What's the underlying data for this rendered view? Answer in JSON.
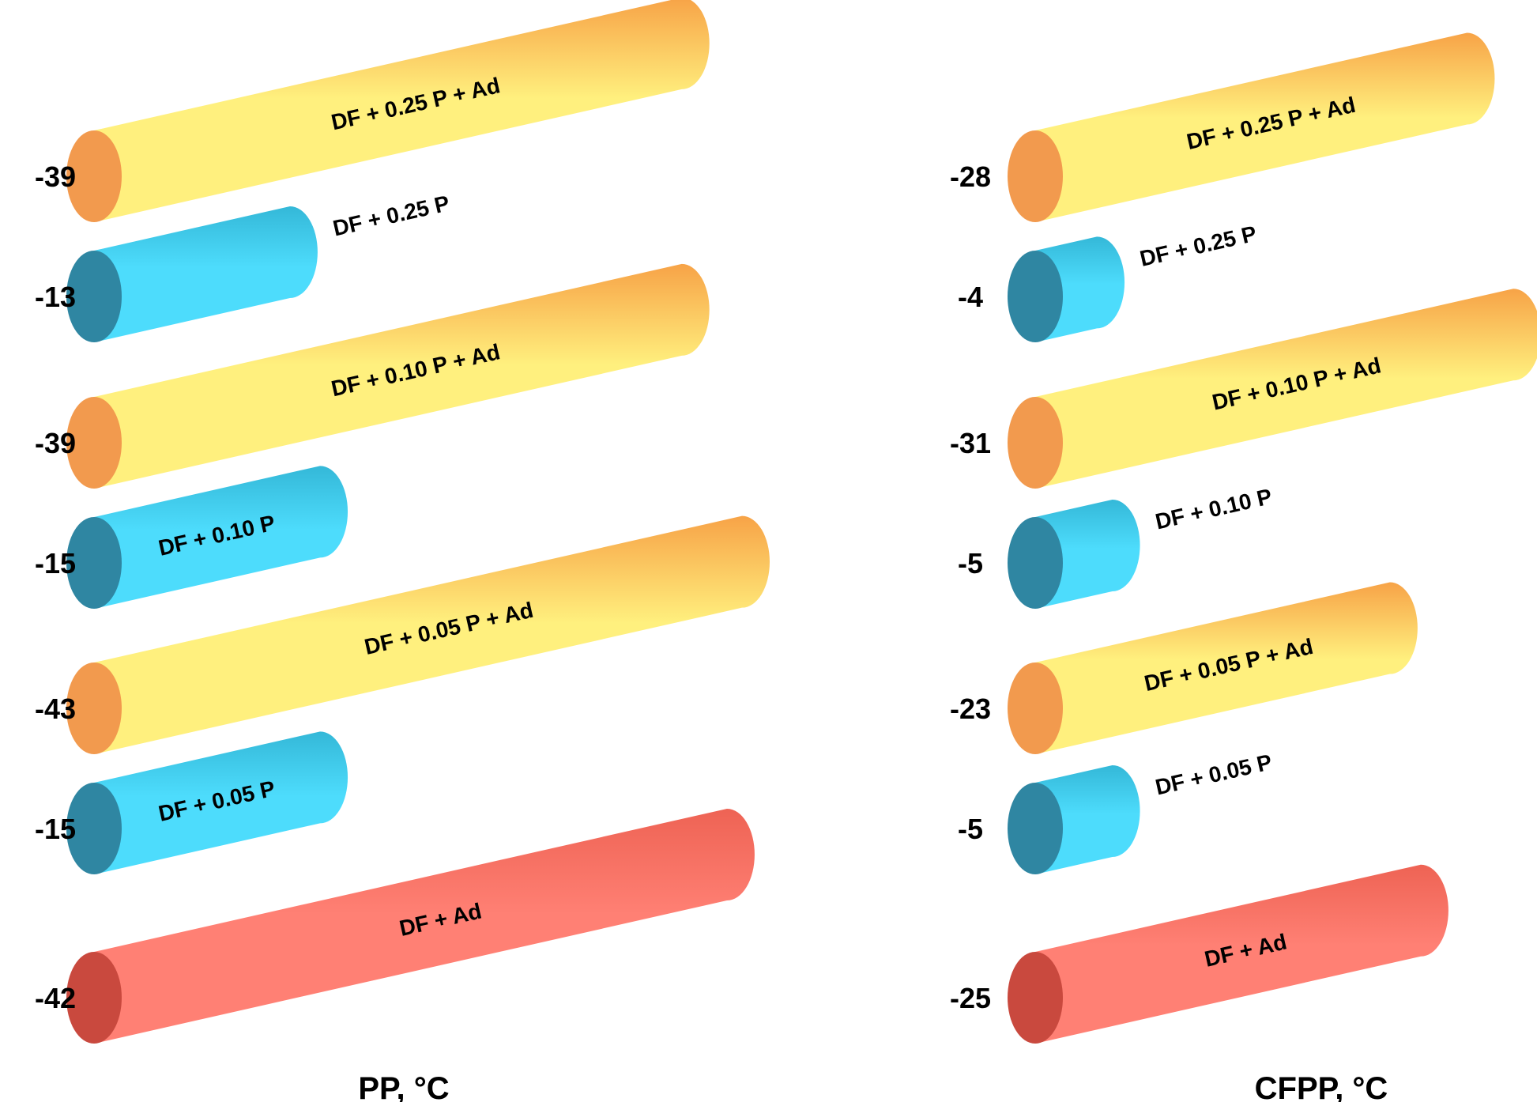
{
  "chart_data": [
    {
      "type": "bar",
      "orientation": "horizontal",
      "value_sign": "negative",
      "xlabel": "PP, °C",
      "categories": [
        "DF + 0.25 P + Ad",
        "DF + 0.25 P",
        "DF + 0.10 P + Ad",
        "DF + 0.10 P",
        "DF + 0.05 P + Ad",
        "DF + 0.05 P",
        "DF + Ad"
      ],
      "values": [
        -39,
        -13,
        -39,
        -15,
        -43,
        -15,
        -42
      ],
      "value_labels": [
        "-39",
        "-13",
        "-39",
        "-15",
        "-43",
        "-15",
        "-42"
      ],
      "styles": [
        "additive",
        "plain",
        "additive",
        "plain",
        "additive",
        "plain",
        "base"
      ],
      "xlim": [
        0,
        -43
      ]
    },
    {
      "type": "bar",
      "orientation": "horizontal",
      "value_sign": "negative",
      "xlabel": "CFPP, °C",
      "categories": [
        "DF + 0.25 P + Ad",
        "DF + 0.25 P",
        "DF + 0.10 P + Ad",
        "DF + 0.10 P",
        "DF + 0.05 P + Ad",
        "DF + 0.05 P",
        "DF + Ad"
      ],
      "values": [
        -28,
        -4,
        -31,
        -5,
        -23,
        -5,
        -25
      ],
      "value_labels": [
        "-28",
        "-4",
        "-31",
        "-5",
        "-23",
        "-5",
        "-25"
      ],
      "styles": [
        "additive",
        "plain",
        "additive",
        "plain",
        "additive",
        "plain",
        "base"
      ],
      "xlim": [
        0,
        -31
      ]
    }
  ],
  "colors": {
    "additive": {
      "end": "#f29a4e",
      "top": "#f7a347",
      "body": "#fff07e"
    },
    "plain": {
      "end": "#2f86a2",
      "top": "#34b8d8",
      "body": "#4ddcfc"
    },
    "base": {
      "end": "#c9493e",
      "top": "#ee6354",
      "body": "#ff8074"
    }
  }
}
